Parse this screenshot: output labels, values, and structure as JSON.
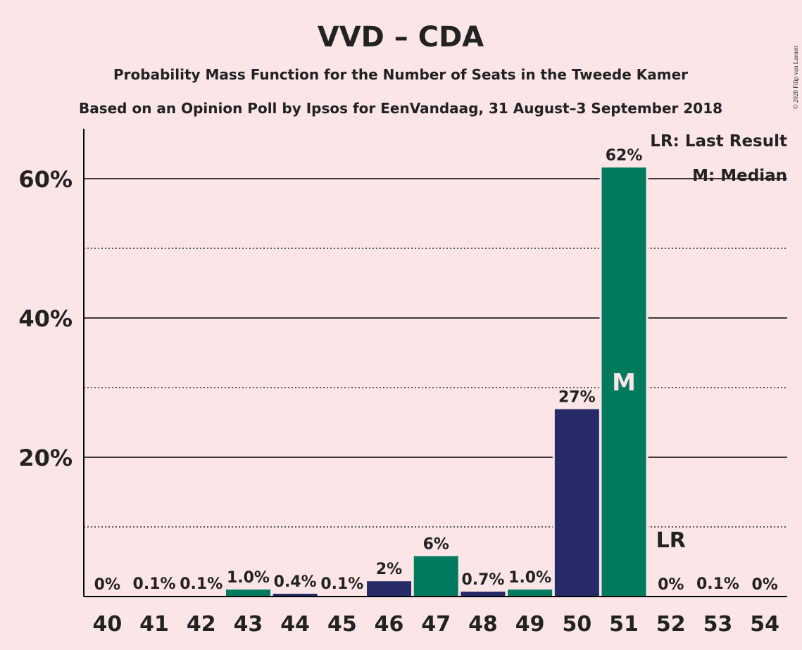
{
  "title": "VVD – CDA",
  "subtitle1": "Probability Mass Function for the Number of Seats in the Tweede Kamer",
  "subtitle2": "Based on an Opinion Poll by Ipsos for EenVandaag, 31 August–3 September 2018",
  "credit": "© 2020 Filip van Laenen",
  "legend": {
    "lr": "LR: Last Result",
    "median": "M: Median"
  },
  "markers": {
    "lr_label": "LR",
    "lr_seat": 52,
    "median_label": "M",
    "median_seat": 51
  },
  "colors": {
    "background": "#FBE5E6",
    "navy": "#262A66",
    "green": "#007A5E",
    "axis": "#000000"
  },
  "chart_data": {
    "type": "bar",
    "categories": [
      "40",
      "41",
      "42",
      "43",
      "44",
      "45",
      "46",
      "47",
      "48",
      "49",
      "50",
      "51",
      "52",
      "53",
      "54"
    ],
    "values": [
      0,
      0.1,
      0.1,
      1.0,
      0.4,
      0.1,
      2.2,
      5.8,
      0.7,
      1.0,
      26.9,
      61.6,
      0,
      0.1,
      0
    ],
    "labels": [
      "0%",
      "0.1%",
      "0.1%",
      "1.0%",
      "0.4%",
      "0.1%",
      "2%",
      "6%",
      "0.7%",
      "1.0%",
      "27%",
      "62%",
      "0%",
      "0.1%",
      "0%"
    ],
    "bar_colors": [
      "navy",
      "navy",
      "green",
      "green",
      "navy",
      "navy",
      "navy",
      "green",
      "navy",
      "green",
      "navy",
      "green",
      "navy",
      "green",
      "navy"
    ],
    "yticks": [
      20,
      40,
      60
    ],
    "ytick_labels": [
      "20%",
      "40%",
      "60%"
    ],
    "ylim": [
      0,
      67
    ],
    "minor_gridlines": [
      10,
      30,
      50
    ],
    "grid": true,
    "legend_position": "top-right"
  }
}
